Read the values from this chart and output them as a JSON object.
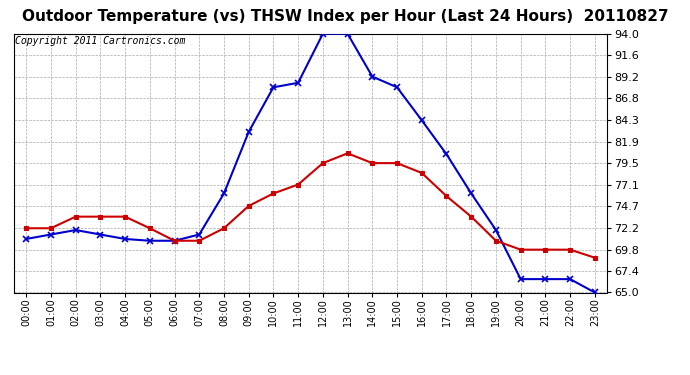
{
  "title": "Outdoor Temperature (vs) THSW Index per Hour (Last 24 Hours)  20110827",
  "copyright": "Copyright 2011 Cartronics.com",
  "hours": [
    "00:00",
    "01:00",
    "02:00",
    "03:00",
    "04:00",
    "05:00",
    "06:00",
    "07:00",
    "08:00",
    "09:00",
    "10:00",
    "11:00",
    "12:00",
    "13:00",
    "14:00",
    "15:00",
    "16:00",
    "17:00",
    "18:00",
    "19:00",
    "20:00",
    "21:00",
    "22:00",
    "23:00"
  ],
  "temp": [
    72.2,
    72.2,
    73.5,
    73.5,
    73.5,
    72.2,
    70.8,
    70.8,
    72.2,
    74.7,
    76.1,
    77.1,
    79.5,
    80.6,
    79.5,
    79.5,
    78.4,
    75.8,
    73.5,
    70.8,
    69.8,
    69.8,
    69.8,
    68.9
  ],
  "thsw": [
    71.0,
    71.5,
    72.0,
    71.5,
    71.0,
    70.8,
    70.8,
    71.5,
    76.1,
    83.0,
    88.0,
    88.5,
    94.0,
    94.0,
    89.2,
    88.0,
    84.3,
    80.5,
    76.1,
    72.0,
    66.5,
    66.5,
    66.5,
    65.0
  ],
  "temp_color": "#cc0000",
  "thsw_color": "#0000cc",
  "ylim_min": 65.0,
  "ylim_max": 94.0,
  "yticks": [
    65.0,
    67.4,
    69.8,
    72.2,
    74.7,
    77.1,
    79.5,
    81.9,
    84.3,
    86.8,
    89.2,
    91.6,
    94.0
  ],
  "background_color": "#ffffff",
  "grid_color": "#aaaaaa",
  "title_fontsize": 11,
  "copyright_fontsize": 7
}
